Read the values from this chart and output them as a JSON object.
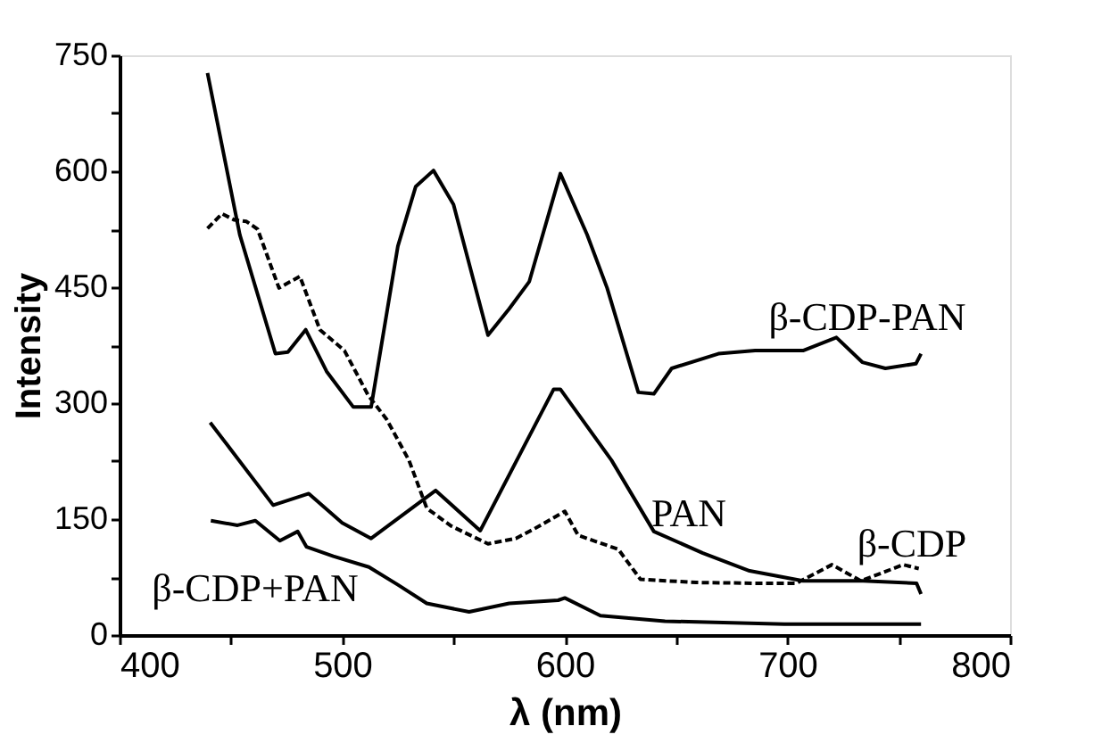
{
  "chart_data": {
    "type": "line",
    "xlabel": "λ (nm)",
    "ylabel": "Intensity",
    "xlim": [
      400,
      800
    ],
    "ylim": [
      0,
      750
    ],
    "xticks": [
      400,
      {
        "value": 450,
        "label": null
      },
      500,
      {
        "value": 550,
        "label": null
      },
      600,
      {
        "value": 650,
        "label": null
      },
      700,
      {
        "value": 750,
        "label": null
      },
      800
    ],
    "yticks": [
      0,
      {
        "value": 75,
        "label": null
      },
      150,
      {
        "value": 225,
        "label": null
      },
      300,
      {
        "value": 375,
        "label": null
      },
      450,
      {
        "value": 525,
        "label": null
      },
      600,
      {
        "value": 675,
        "label": null
      },
      750
    ],
    "grid": false,
    "marker": "none",
    "series": [
      {
        "name": "β-CDP-PAN",
        "color": "#000000",
        "line_style": "solid",
        "x": [
          439.5,
          454,
          470,
          475.6,
          483.6,
          493,
          505,
          513,
          525,
          533,
          541,
          550,
          565.5,
          575,
          584,
          598,
          610,
          619,
          633,
          640,
          648,
          669,
          685.5,
          707,
          722,
          733.6,
          744,
          757.7,
          760
        ],
        "values": [
          727,
          518,
          364,
          366,
          395,
          341,
          295,
          295,
          503,
          580,
          601,
          557,
          388,
          422,
          457,
          597,
          518,
          449,
          314,
          312,
          345,
          364,
          368,
          368,
          385,
          353,
          345,
          351,
          364
        ]
      },
      {
        "name": "PAN",
        "color": "#000000",
        "line_style": "solid",
        "x": [
          440.7,
          469,
          485,
          500,
          513,
          542,
          562,
          595,
          598,
          621,
          640,
          662,
          683,
          707,
          734,
          758,
          760
        ],
        "values": [
          275,
          168,
          183,
          145,
          125,
          187,
          135,
          318,
          318,
          226,
          134,
          106,
          83,
          70,
          70,
          67,
          53
        ]
      },
      {
        "name": "β-CDP",
        "color": "#000000",
        "line_style": "dashed",
        "x": [
          439.5,
          446,
          451.6,
          457,
          462,
          471.6,
          481,
          490,
          501,
          506,
          511.7,
          520,
          530,
          538,
          549,
          565.5,
          578,
          586,
          600,
          606,
          624,
          634,
          659,
          685.5,
          704,
          720,
          733,
          752,
          759
        ],
        "values": [
          526,
          545,
          537,
          535,
          525,
          449,
          464,
          395,
          368,
          341,
          310,
          279,
          226,
          164,
          141,
          118,
          125,
          137,
          160,
          129,
          111,
          72,
          68,
          67,
          67,
          91,
          70,
          91,
          86
        ]
      },
      {
        "name": "β-CDP+PAN",
        "color": "#000000",
        "line_style": "solid",
        "x": [
          441,
          453,
          461,
          472,
          480,
          484,
          496,
          512,
          525,
          538,
          557,
          575,
          597,
          600,
          616,
          645,
          698.6,
          760
        ],
        "values": [
          148,
          142,
          148,
          122,
          134,
          114,
          102,
          88,
          65,
          41,
          30,
          41,
          45,
          48,
          25,
          18,
          14,
          14
        ]
      }
    ]
  }
}
